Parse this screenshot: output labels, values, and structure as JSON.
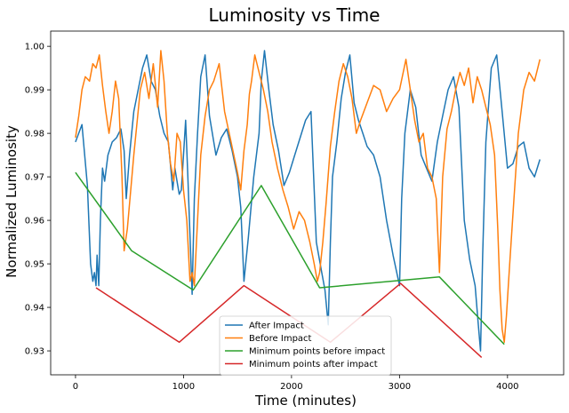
{
  "chart_data": {
    "type": "line",
    "title": "Luminosity vs Time",
    "xlabel": "Time (minutes)",
    "ylabel": "Normalized Luminosity",
    "xlim": [
      -230,
      4520
    ],
    "ylim": [
      0.9245,
      1.0035
    ],
    "xticks": [
      0,
      1000,
      2000,
      3000,
      4000
    ],
    "yticks": [
      0.93,
      0.94,
      0.95,
      0.96,
      0.97,
      0.98,
      0.99,
      1.0
    ],
    "ytick_labels": [
      "0.93",
      "0.94",
      "0.95",
      "0.96",
      "0.97",
      "0.98",
      "0.99",
      "1.00"
    ],
    "grid": false,
    "legend_position": "lower-center",
    "series": [
      {
        "name": "After Impact",
        "color": "#1f77b4",
        "x": [
          0,
          60,
          110,
          140,
          160,
          175,
          190,
          200,
          215,
          230,
          250,
          270,
          300,
          340,
          380,
          420,
          450,
          470,
          500,
          540,
          580,
          620,
          660,
          700,
          740,
          780,
          820,
          860,
          900,
          920,
          940,
          960,
          980,
          1000,
          1020,
          1040,
          1080,
          1100,
          1130,
          1160,
          1200,
          1240,
          1300,
          1350,
          1400,
          1450,
          1500,
          1530,
          1560,
          1600,
          1650,
          1700,
          1720,
          1750,
          1790,
          1830,
          1880,
          1930,
          1980,
          2030,
          2080,
          2130,
          2180,
          2230,
          2280,
          2310,
          2340,
          2360,
          2380,
          2420,
          2460,
          2500,
          2540,
          2580,
          2620,
          2660,
          2700,
          2760,
          2820,
          2880,
          2940,
          3000,
          3020,
          3050,
          3100,
          3150,
          3200,
          3250,
          3300,
          3350,
          3400,
          3450,
          3500,
          3550,
          3600,
          3650,
          3700,
          3730,
          3750,
          3770,
          3800,
          3850,
          3900,
          3950,
          4000,
          4050,
          4100,
          4150,
          4200,
          4250,
          4300
        ],
        "y": [
          0.978,
          0.982,
          0.968,
          0.95,
          0.946,
          0.948,
          0.945,
          0.952,
          0.945,
          0.96,
          0.972,
          0.969,
          0.975,
          0.978,
          0.979,
          0.981,
          0.976,
          0.965,
          0.975,
          0.985,
          0.99,
          0.995,
          0.998,
          0.992,
          0.99,
          0.984,
          0.98,
          0.978,
          0.967,
          0.972,
          0.969,
          0.966,
          0.967,
          0.975,
          0.983,
          0.97,
          0.943,
          0.965,
          0.98,
          0.993,
          0.998,
          0.984,
          0.975,
          0.979,
          0.981,
          0.976,
          0.97,
          0.963,
          0.946,
          0.956,
          0.97,
          0.98,
          0.992,
          0.999,
          0.99,
          0.982,
          0.976,
          0.968,
          0.971,
          0.975,
          0.979,
          0.983,
          0.985,
          0.955,
          0.948,
          0.944,
          0.936,
          0.955,
          0.97,
          0.978,
          0.988,
          0.994,
          0.998,
          0.987,
          0.983,
          0.98,
          0.977,
          0.975,
          0.97,
          0.96,
          0.952,
          0.945,
          0.965,
          0.98,
          0.99,
          0.986,
          0.975,
          0.972,
          0.969,
          0.978,
          0.984,
          0.99,
          0.993,
          0.986,
          0.96,
          0.951,
          0.945,
          0.936,
          0.93,
          0.952,
          0.978,
          0.995,
          0.998,
          0.985,
          0.972,
          0.973,
          0.977,
          0.978,
          0.972,
          0.97,
          0.974
        ]
      },
      {
        "name": "Before Impact",
        "color": "#ff7f0e",
        "x": [
          0,
          30,
          60,
          90,
          130,
          160,
          190,
          220,
          250,
          280,
          310,
          340,
          370,
          400,
          430,
          450,
          480,
          540,
          600,
          640,
          680,
          720,
          760,
          790,
          820,
          850,
          880,
          910,
          940,
          970,
          1000,
          1030,
          1060,
          1080,
          1100,
          1130,
          1160,
          1200,
          1240,
          1280,
          1330,
          1380,
          1440,
          1500,
          1530,
          1560,
          1590,
          1610,
          1630,
          1660,
          1700,
          1740,
          1780,
          1820,
          1870,
          1920,
          1970,
          2020,
          2070,
          2120,
          2170,
          2210,
          2240,
          2260,
          2290,
          2320,
          2360,
          2400,
          2440,
          2480,
          2520,
          2560,
          2600,
          2640,
          2700,
          2760,
          2820,
          2880,
          2940,
          3000,
          3060,
          3100,
          3140,
          3180,
          3220,
          3260,
          3300,
          3340,
          3370,
          3400,
          3440,
          3480,
          3520,
          3560,
          3600,
          3640,
          3680,
          3720,
          3760,
          3800,
          3840,
          3880,
          3910,
          3930,
          3950,
          3970,
          3990,
          4020,
          4060,
          4100,
          4150,
          4200,
          4250,
          4300
        ],
        "y": [
          0.979,
          0.984,
          0.99,
          0.993,
          0.992,
          0.996,
          0.995,
          0.998,
          0.991,
          0.985,
          0.98,
          0.985,
          0.992,
          0.988,
          0.97,
          0.953,
          0.958,
          0.975,
          0.99,
          0.994,
          0.988,
          0.996,
          0.986,
          0.999,
          0.992,
          0.98,
          0.973,
          0.969,
          0.98,
          0.978,
          0.967,
          0.96,
          0.946,
          0.948,
          0.945,
          0.96,
          0.975,
          0.984,
          0.99,
          0.992,
          0.996,
          0.985,
          0.978,
          0.971,
          0.967,
          0.976,
          0.982,
          0.989,
          0.992,
          0.998,
          0.994,
          0.99,
          0.985,
          0.978,
          0.972,
          0.967,
          0.963,
          0.958,
          0.962,
          0.96,
          0.955,
          0.95,
          0.946,
          0.948,
          0.955,
          0.964,
          0.977,
          0.985,
          0.992,
          0.996,
          0.993,
          0.988,
          0.98,
          0.983,
          0.987,
          0.991,
          0.99,
          0.985,
          0.988,
          0.99,
          0.997,
          0.99,
          0.983,
          0.978,
          0.98,
          0.972,
          0.97,
          0.965,
          0.948,
          0.97,
          0.981,
          0.985,
          0.99,
          0.994,
          0.991,
          0.995,
          0.987,
          0.993,
          0.99,
          0.986,
          0.982,
          0.975,
          0.958,
          0.944,
          0.935,
          0.932,
          0.938,
          0.95,
          0.965,
          0.98,
          0.99,
          0.994,
          0.992,
          0.997
        ]
      },
      {
        "name": "Minimum points before impact",
        "color": "#2ca02c",
        "x": [
          0,
          520,
          1090,
          1720,
          2260,
          3370,
          3970
        ],
        "y": [
          0.971,
          0.953,
          0.944,
          0.968,
          0.9445,
          0.947,
          0.9315
        ]
      },
      {
        "name": "Minimum points after impact",
        "color": "#d62728",
        "x": [
          190,
          960,
          1560,
          2360,
          3010,
          3760
        ],
        "y": [
          0.9445,
          0.932,
          0.945,
          0.932,
          0.9455,
          0.9285
        ]
      }
    ]
  }
}
